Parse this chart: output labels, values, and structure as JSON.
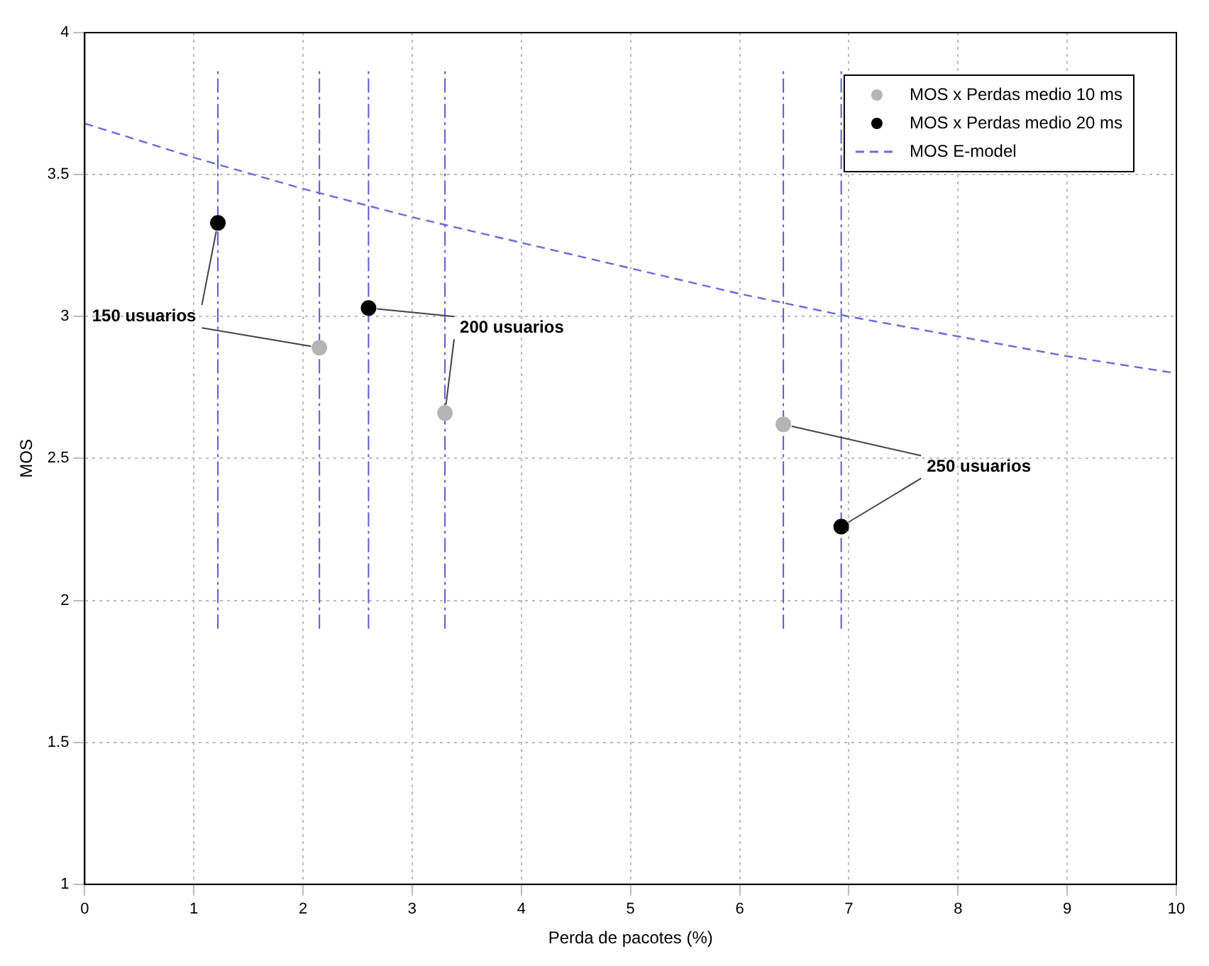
{
  "chart_data": {
    "type": "scatter",
    "xlabel": "Perda de pacotes (%)",
    "ylabel": "MOS",
    "series": [
      {
        "name": "MOS x Perdas medio 10 ms",
        "color": "#b4b4b4",
        "marker": "circle",
        "x": [
          2.15,
          3.3,
          6.4
        ],
        "values": [
          2.89,
          2.66,
          2.62
        ],
        "errors": [
          [
            1.9,
            3.87
          ],
          [
            1.9,
            3.87
          ],
          [
            1.9,
            3.87
          ]
        ]
      },
      {
        "name": "MOS x Perdas medio 20 ms",
        "color": "#000000",
        "marker": "circle",
        "x": [
          1.22,
          2.6,
          6.93
        ],
        "values": [
          3.33,
          3.03,
          2.26
        ],
        "errors": [
          [
            1.9,
            3.87
          ],
          [
            1.9,
            3.87
          ],
          [
            1.9,
            3.87
          ]
        ]
      },
      {
        "name": "MOS E-model",
        "type": "line",
        "color": "#6a6ad8",
        "marker": "none",
        "line_style": "dashed",
        "x": [
          0,
          1,
          2,
          3,
          4,
          5,
          6,
          7,
          8,
          9,
          10
        ],
        "values": [
          3.68,
          3.56,
          3.45,
          3.35,
          3.26,
          3.17,
          3.08,
          3.0,
          2.93,
          2.86,
          2.8
        ]
      }
    ],
    "annotations": [
      {
        "text": "150 usuarios",
        "x": 1.22,
        "y": 3.33
      },
      {
        "text": "200 usuarios",
        "x": 2.6,
        "y": 3.03
      },
      {
        "text": "250 usuarios",
        "x": 6.93,
        "y": 2.26
      }
    ],
    "xlim": [
      0,
      10
    ],
    "xticks": [
      0,
      1,
      2,
      3,
      4,
      5,
      6,
      7,
      8,
      9,
      10
    ],
    "ylim": [
      1,
      4
    ],
    "yticks": [
      1,
      1.5,
      2,
      2.5,
      3,
      3.5,
      4
    ],
    "grid": true,
    "legend": "top right"
  }
}
